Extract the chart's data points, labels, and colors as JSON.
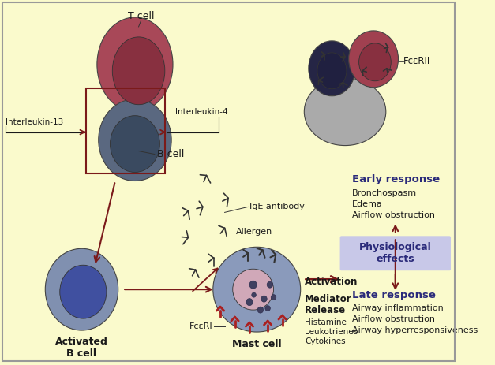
{
  "bg_color": "#FAFACC",
  "border_color": "#888888",
  "dark_red": "#7B1A1A",
  "dark_navy": "#2C3357",
  "labels": {
    "T_cell": "T cell",
    "B_cell": "B cell",
    "Interleukin13": "Interleukin-13",
    "Interleukin4": "Interleukin-4",
    "IgE_antibody": "IgE antibody",
    "FceRII": "FcεRII",
    "FceRI": "FcεRI",
    "Allergen": "Allergen",
    "Activated_B_cell": "Activated\nB cell",
    "Mast_cell": "Mast cell",
    "Activation": "Activation",
    "Mediator_Release": "Mediator\nRelease",
    "Histamine": "Histamine",
    "Leukotrienes": "Leukotrienes",
    "Cytokines": "Cytokines",
    "Early_response": "Early response",
    "Bronchospasm": "Bronchospasm",
    "Edema": "Edema",
    "Airflow_obstruction1": "Airflow obstruction",
    "Physiological_effects": "Physiological\neffects",
    "Late_response": "Late response",
    "Airway_inflammation": "Airway inflammation",
    "Airflow_obstruction2": "Airflow obstruction",
    "Airway_hyperresponsiveness": "Airway hyperresponsiveness"
  },
  "colors": {
    "T_cell_outer": "#A84858",
    "T_cell_nucleus": "#883040",
    "B_cell_outer": "#5A6880",
    "B_cell_nucleus": "#3A4A60",
    "activated_B_outer": "#8090B0",
    "activated_B_nucleus": "#4050A0",
    "mast_cell_outer": "#8A9ABB",
    "mast_cell_nucleus": "#D0A8B8",
    "antibody_color": "#333333",
    "arrow_color": "#7B1A1A",
    "text_dark": "#1A1A1A",
    "text_blue": "#2A2A7A",
    "box_outline": "#8B1A1A",
    "FceRII_cell1_outer": "#252545",
    "FceRII_cell1_nucleus": "#202040",
    "FceRII_cell2_outer": "#A04050",
    "FceRII_cell2_nucleus": "#883040",
    "cloud_cell_outer": "#AAAAAA",
    "receptor_color": "#AA2020",
    "granule_color": "#404060",
    "granule_edge": "#303050",
    "physio_box": "#C8C8E8"
  }
}
